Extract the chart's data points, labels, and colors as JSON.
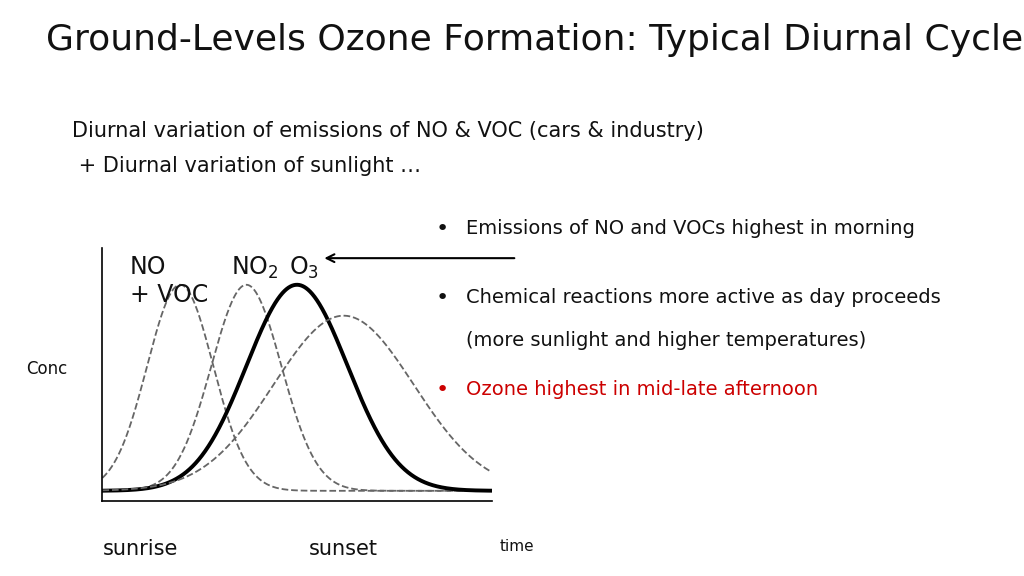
{
  "title": "Ground-Levels Ozone Formation: Typical Diurnal Cycles",
  "title_fontsize": 26,
  "subtitle_line1": "Diurnal variation of emissions of NO & VOC (cars & industry)",
  "subtitle_line2": " + Diurnal variation of sunlight …",
  "subtitle_fontsize": 15,
  "ylabel": "Conc",
  "xlabel_sunrise": "sunrise",
  "xlabel_sunset": "sunset",
  "xlabel_time": "time",
  "bg_color": "#ffffff",
  "curve_gray_color": "#666666",
  "curve_o3_color": "#000000",
  "curve_o3_linewidth": 2.8,
  "curve_dashed_linewidth": 1.3,
  "bullet_color_black": "#111111",
  "bullet_color_red": "#cc0000",
  "bullet1": "Emissions of NO and VOCs highest in morning",
  "bullet2_line1": "Chemical reactions more active as day proceeds",
  "bullet2_line2": "(more sunlight and higher temperatures)",
  "bullet3": "Ozone highest in mid-late afternoon",
  "bullet_fontsize": 14,
  "label_fontsize": 17,
  "conc_fontsize": 12
}
